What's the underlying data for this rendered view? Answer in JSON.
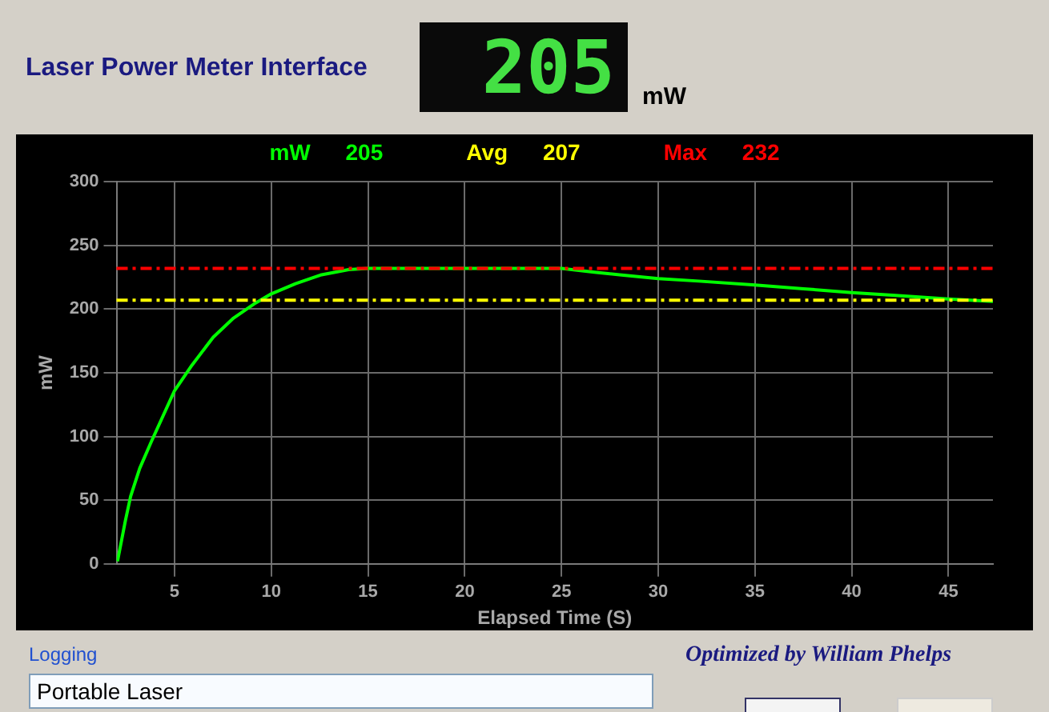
{
  "chart_data": {
    "type": "line",
    "title": "Laser Power Meter Interface",
    "xlabel": "Elapsed Time (S)",
    "ylabel": "mW",
    "series": [
      {
        "color": "#00ff00",
        "x": [
          2.05,
          2.46,
          2.73,
          3.2,
          3.8,
          5,
          5.9,
          7,
          8.05,
          9.1,
          10,
          11.25,
          12.6,
          14,
          15,
          20,
          25,
          26.7,
          28,
          30,
          32.1,
          35,
          37.5,
          40,
          42.1,
          45,
          47.3
        ],
        "values": [
          2,
          34,
          53,
          75,
          96,
          136,
          156,
          178,
          193,
          204,
          212,
          220,
          227,
          231,
          232,
          232,
          232,
          229,
          227,
          224,
          222,
          219,
          216,
          213,
          211,
          208,
          206
        ]
      }
    ],
    "xlim": [
      2,
      47.3
    ],
    "xticks": [
      5,
      10,
      15,
      20,
      25,
      30,
      35,
      40,
      45
    ],
    "ylim": [
      0,
      300
    ],
    "yticks": [
      0,
      50,
      100,
      150,
      200,
      250,
      300
    ],
    "ref_lines": [
      {
        "axis": "y",
        "value": 207,
        "label": "Avg 207",
        "color": "#ffff00",
        "line_style": "dashed"
      },
      {
        "axis": "y",
        "value": 232,
        "label": "Max 232",
        "color": "#ff0000",
        "line_style": "dashed"
      }
    ],
    "annotations": [
      "205",
      "mW",
      "mW 205",
      "Logging",
      "Portable Laser",
      "Optimized by William Phelps"
    ],
    "grid": true,
    "legend": false,
    "marker": "none",
    "line_style": "solid"
  }
}
